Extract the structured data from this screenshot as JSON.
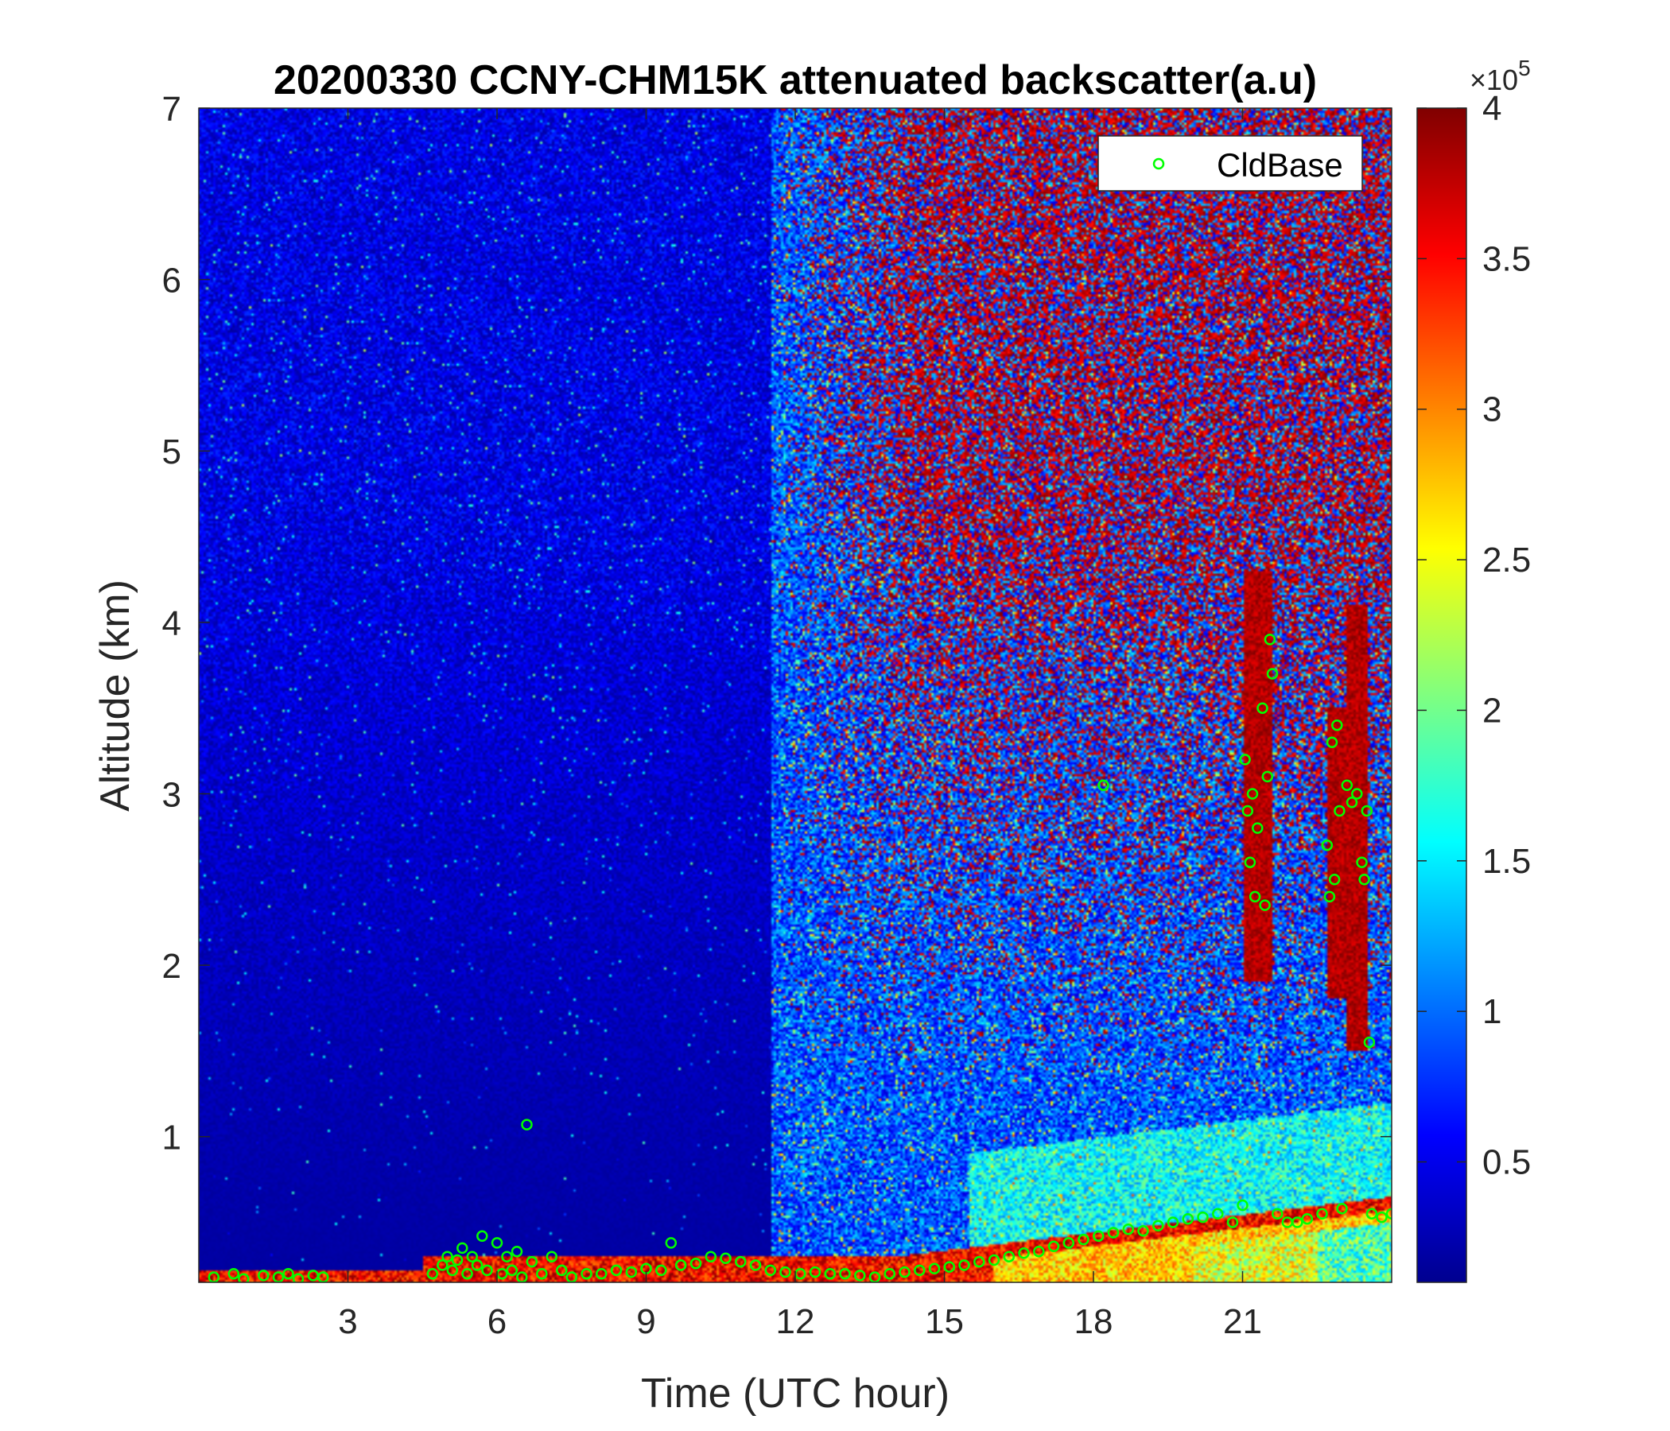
{
  "chart_data": {
    "type": "heatmap",
    "title": "20200330 CCNY-CHM15K attenuated backscatter(a.u)",
    "xlabel": "Time (UTC hour)",
    "ylabel": "Altitude (km)",
    "xlim": [
      0,
      24
    ],
    "ylim": [
      0.15,
      7
    ],
    "xticks": [
      "3",
      "6",
      "9",
      "12",
      "15",
      "18",
      "21"
    ],
    "yticks": [
      "1",
      "2",
      "3",
      "4",
      "5",
      "6",
      "7"
    ],
    "colorbar": {
      "colormap": "jet",
      "range": [
        0.1,
        4
      ],
      "ticks": [
        "0.5",
        "1",
        "1.5",
        "2",
        "2.5",
        "3",
        "3.5",
        "4"
      ],
      "multiplier_base": "×10",
      "multiplier_exponent": "5"
    },
    "legend": {
      "position": "top-right",
      "entries": [
        {
          "name": "CldBase",
          "marker": "circle",
          "color": "#00ff00"
        }
      ]
    },
    "series": [
      {
        "name": "CldBase",
        "points": [
          [
            0.3,
            0.18
          ],
          [
            0.7,
            0.2
          ],
          [
            0.9,
            0.17
          ],
          [
            1.3,
            0.19
          ],
          [
            1.6,
            0.18
          ],
          [
            1.8,
            0.2
          ],
          [
            2.0,
            0.17
          ],
          [
            2.3,
            0.19
          ],
          [
            2.5,
            0.18
          ],
          [
            4.7,
            0.2
          ],
          [
            4.9,
            0.25
          ],
          [
            5.0,
            0.3
          ],
          [
            5.1,
            0.22
          ],
          [
            5.2,
            0.28
          ],
          [
            5.3,
            0.35
          ],
          [
            5.4,
            0.2
          ],
          [
            5.5,
            0.3
          ],
          [
            5.6,
            0.25
          ],
          [
            5.7,
            0.42
          ],
          [
            5.8,
            0.22
          ],
          [
            6.0,
            0.38
          ],
          [
            6.1,
            0.2
          ],
          [
            6.2,
            0.3
          ],
          [
            6.3,
            0.22
          ],
          [
            6.4,
            0.33
          ],
          [
            6.5,
            0.18
          ],
          [
            6.6,
            1.07
          ],
          [
            6.7,
            0.27
          ],
          [
            6.9,
            0.2
          ],
          [
            7.1,
            0.3
          ],
          [
            7.3,
            0.22
          ],
          [
            7.5,
            0.18
          ],
          [
            7.8,
            0.2
          ],
          [
            8.1,
            0.2
          ],
          [
            8.4,
            0.22
          ],
          [
            8.7,
            0.21
          ],
          [
            9.0,
            0.23
          ],
          [
            9.3,
            0.22
          ],
          [
            9.5,
            0.38
          ],
          [
            9.7,
            0.25
          ],
          [
            10.0,
            0.26
          ],
          [
            10.3,
            0.3
          ],
          [
            10.6,
            0.29
          ],
          [
            10.9,
            0.27
          ],
          [
            11.2,
            0.25
          ],
          [
            11.5,
            0.22
          ],
          [
            11.8,
            0.21
          ],
          [
            12.1,
            0.2
          ],
          [
            12.4,
            0.21
          ],
          [
            12.7,
            0.2
          ],
          [
            13.0,
            0.2
          ],
          [
            13.3,
            0.19
          ],
          [
            13.6,
            0.18
          ],
          [
            13.9,
            0.2
          ],
          [
            14.2,
            0.21
          ],
          [
            14.5,
            0.22
          ],
          [
            14.8,
            0.23
          ],
          [
            15.1,
            0.24
          ],
          [
            15.4,
            0.25
          ],
          [
            15.7,
            0.27
          ],
          [
            16.0,
            0.28
          ],
          [
            16.3,
            0.3
          ],
          [
            16.6,
            0.32
          ],
          [
            16.9,
            0.33
          ],
          [
            17.2,
            0.36
          ],
          [
            17.5,
            0.38
          ],
          [
            17.8,
            0.4
          ],
          [
            18.1,
            0.42
          ],
          [
            18.2,
            3.05
          ],
          [
            18.4,
            0.44
          ],
          [
            18.7,
            0.46
          ],
          [
            19.0,
            0.45
          ],
          [
            19.3,
            0.48
          ],
          [
            19.6,
            0.5
          ],
          [
            19.9,
            0.52
          ],
          [
            20.2,
            0.53
          ],
          [
            20.5,
            0.55
          ],
          [
            20.8,
            0.5
          ],
          [
            21.0,
            0.6
          ],
          [
            21.05,
            3.2
          ],
          [
            21.1,
            2.9
          ],
          [
            21.15,
            2.6
          ],
          [
            21.2,
            3.0
          ],
          [
            21.25,
            2.4
          ],
          [
            21.3,
            2.8
          ],
          [
            21.4,
            3.5
          ],
          [
            21.45,
            2.35
          ],
          [
            21.5,
            3.1
          ],
          [
            21.55,
            3.9
          ],
          [
            21.6,
            3.7
          ],
          [
            21.7,
            0.55
          ],
          [
            21.9,
            0.5
          ],
          [
            22.1,
            0.5
          ],
          [
            22.3,
            0.52
          ],
          [
            22.6,
            0.55
          ],
          [
            22.7,
            2.7
          ],
          [
            22.75,
            2.4
          ],
          [
            22.8,
            3.3
          ],
          [
            22.85,
            2.5
          ],
          [
            22.9,
            3.4
          ],
          [
            22.95,
            2.9
          ],
          [
            23.0,
            0.58
          ],
          [
            23.1,
            3.05
          ],
          [
            23.2,
            2.95
          ],
          [
            23.3,
            3.0
          ],
          [
            23.4,
            2.6
          ],
          [
            23.45,
            2.5
          ],
          [
            23.5,
            2.9
          ],
          [
            23.55,
            1.55
          ],
          [
            23.6,
            0.55
          ],
          [
            23.8,
            0.53
          ],
          [
            24.0,
            0.55
          ]
        ]
      }
    ]
  }
}
